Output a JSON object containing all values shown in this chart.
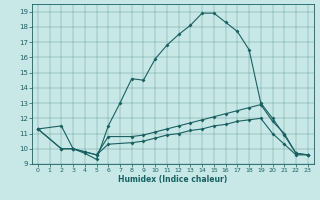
{
  "xlabel": "Humidex (Indice chaleur)",
  "ylabel": "",
  "bg_color": "#c8e8e8",
  "line_color": "#1a6060",
  "xlim": [
    -0.5,
    23.5
  ],
  "ylim": [
    9,
    19.5
  ],
  "xticks": [
    0,
    1,
    2,
    3,
    4,
    5,
    6,
    7,
    8,
    9,
    10,
    11,
    12,
    13,
    14,
    15,
    16,
    17,
    18,
    19,
    20,
    21,
    22,
    23
  ],
  "yticks": [
    9,
    10,
    11,
    12,
    13,
    14,
    15,
    16,
    17,
    18,
    19
  ],
  "curve1_x": [
    0,
    2,
    3,
    4,
    5,
    6,
    7,
    8,
    9,
    10,
    11,
    12,
    13,
    14,
    15,
    16,
    17,
    18,
    19,
    20,
    21,
    22,
    23
  ],
  "curve1_y": [
    11.3,
    11.5,
    10.0,
    9.7,
    9.3,
    11.5,
    13.0,
    14.6,
    14.5,
    15.9,
    16.8,
    17.5,
    18.1,
    18.9,
    18.9,
    18.3,
    17.7,
    16.5,
    13.0,
    12.0,
    10.9,
    9.7,
    9.6
  ],
  "curve2_x": [
    0,
    2,
    3,
    4,
    5,
    6,
    8,
    9,
    10,
    11,
    12,
    13,
    14,
    15,
    16,
    17,
    18,
    19,
    20,
    21,
    22,
    23
  ],
  "curve2_y": [
    11.3,
    10.0,
    10.0,
    9.8,
    9.6,
    10.8,
    10.8,
    10.9,
    11.1,
    11.3,
    11.5,
    11.7,
    11.9,
    12.1,
    12.3,
    12.5,
    12.7,
    12.9,
    11.8,
    11.0,
    9.7,
    9.6
  ],
  "curve3_x": [
    0,
    2,
    3,
    4,
    5,
    6,
    8,
    9,
    10,
    11,
    12,
    13,
    14,
    15,
    16,
    17,
    18,
    19,
    20,
    21,
    22,
    23
  ],
  "curve3_y": [
    11.3,
    10.0,
    10.0,
    9.8,
    9.6,
    10.3,
    10.4,
    10.5,
    10.7,
    10.9,
    11.0,
    11.2,
    11.3,
    11.5,
    11.6,
    11.8,
    11.9,
    12.0,
    11.0,
    10.3,
    9.6,
    9.6
  ]
}
